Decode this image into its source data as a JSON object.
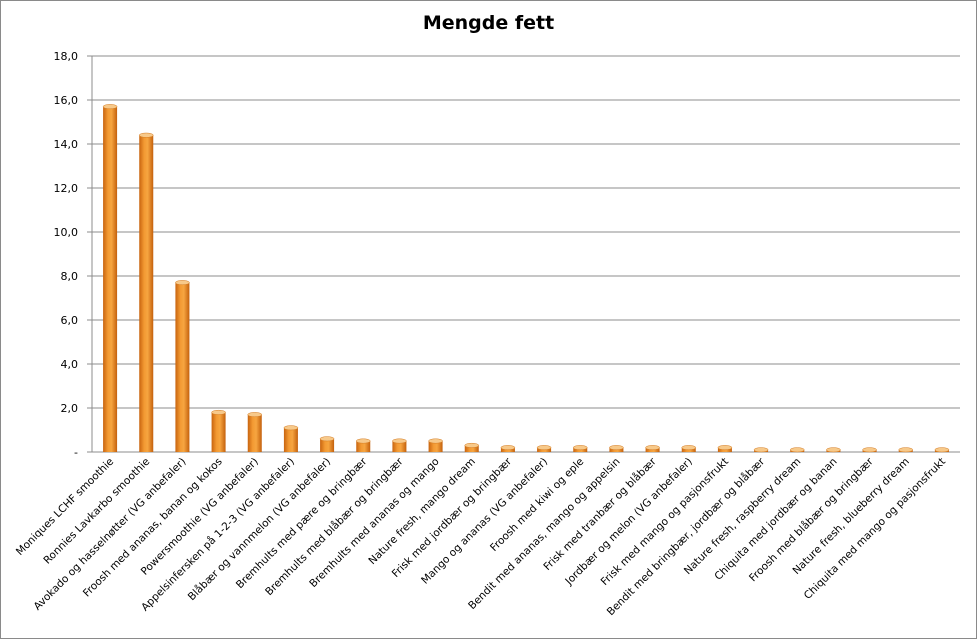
{
  "chart_data": {
    "type": "bar",
    "title": "Mengde fett",
    "xlabel": "",
    "ylabel": "",
    "ylim": [
      0,
      18
    ],
    "yticks": [
      "-",
      "2,0",
      "4,0",
      "6,0",
      "8,0",
      "10,0",
      "12,0",
      "14,0",
      "16,0",
      "18,0"
    ],
    "grid": true,
    "legend": "none",
    "bar_color": "#f0912a",
    "bar_top_color": "#f7c98a",
    "categories": [
      "Moniques LCHF smoothie",
      "Ronnies Lavkarbo smoothie",
      "Avokado og hasselnøtter (VG anbefaler)",
      "Froosh med ananas, banan og kokos",
      "Powersmoothie (VG anbefaler)",
      "Appelsinfersken på 1-2-3 (VG anbefaler)",
      "Blåbær og vannmelon (VG anbefaler)",
      "Bremhults med pære og bringbær",
      "Bremhults med blåbær og bringbær",
      "Bremhults med ananas og mango",
      "Nature fresh, mango dream",
      "Frisk med jordbær og bringbær",
      "Mango og ananas (VG anbefaler)",
      "Froosh med kiwi og eple",
      "Bendit med ananas, mango og appelsin",
      "Frisk med tranbær og blåbær",
      "Jordbær og melon (VG anbefaler)",
      "Frisk med mango og pasjonsfrukt",
      "Bendit med bringbær, jordbær og blåbær",
      "Nature fresh, raspberry dream",
      "Chiquita med jordbær og banan",
      "Froosh med blåbær og bringbær",
      "Nature fresh, blueberry dream",
      "Chiquita med mango og pasjonsfrukt"
    ],
    "values": [
      15.7,
      14.4,
      7.7,
      1.8,
      1.7,
      1.1,
      0.6,
      0.5,
      0.5,
      0.5,
      0.3,
      0.2,
      0.2,
      0.2,
      0.2,
      0.2,
      0.2,
      0.2,
      0.1,
      0.1,
      0.1,
      0.1,
      0.1,
      0.1
    ]
  }
}
